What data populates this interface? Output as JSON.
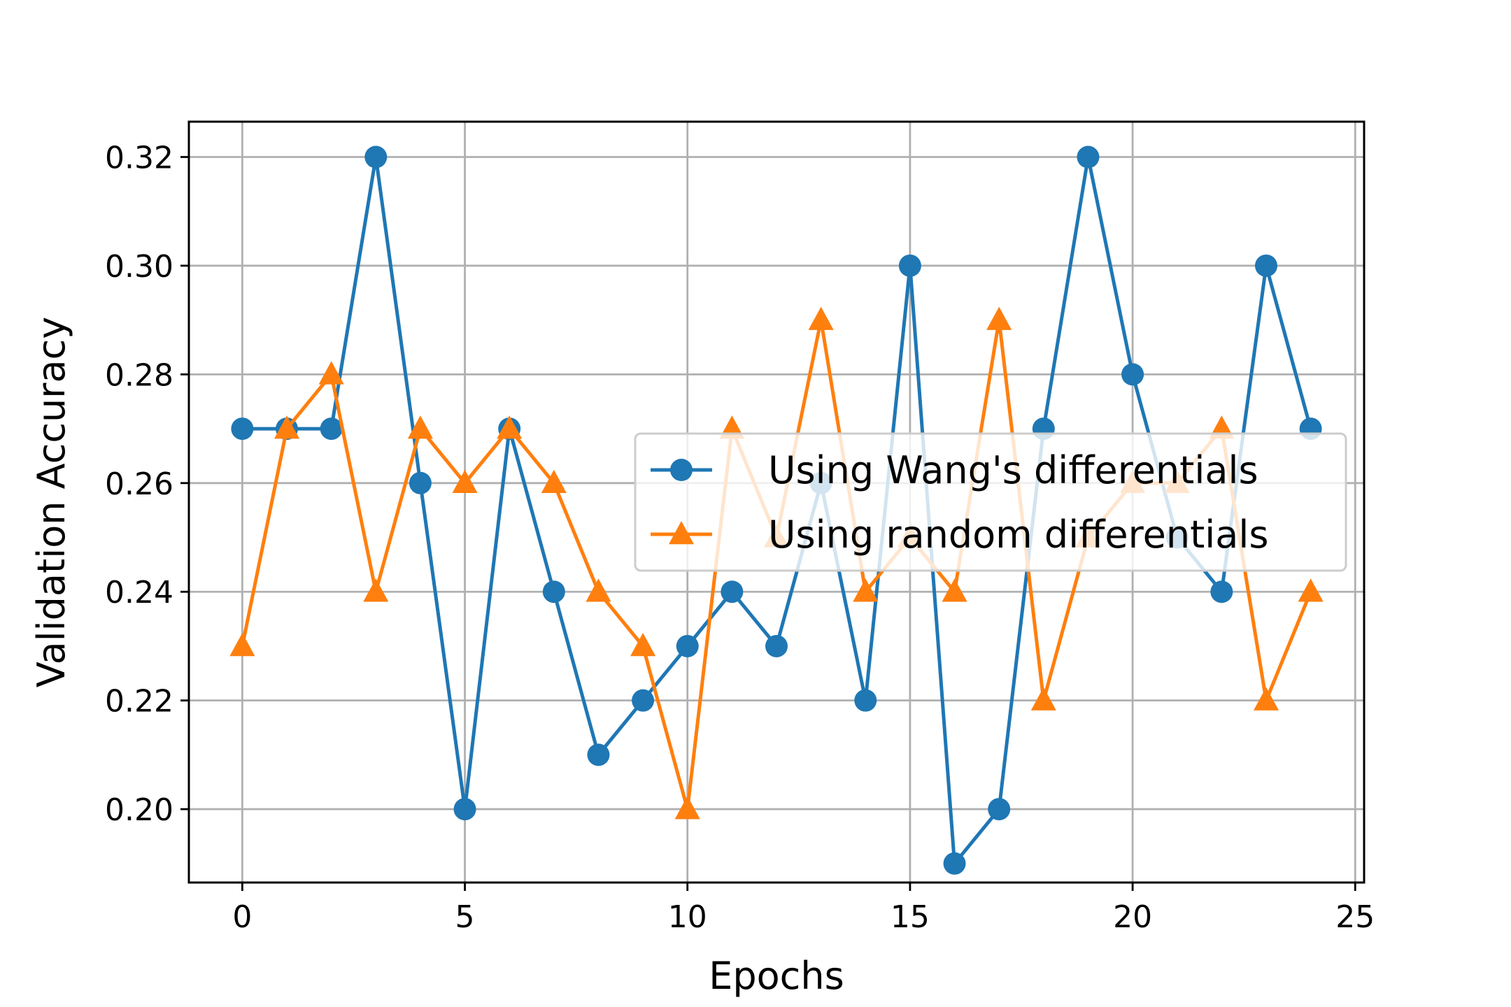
{
  "chart_data": {
    "type": "line",
    "title": "",
    "xlabel": "Epochs",
    "ylabel": "Validation Accuracy",
    "xlim": [
      -1.2,
      25.2
    ],
    "ylim": [
      0.1865,
      0.3265
    ],
    "xticks": [
      0,
      5,
      10,
      15,
      20,
      25
    ],
    "xtick_labels": [
      "0",
      "5",
      "10",
      "15",
      "20",
      "25"
    ],
    "yticks": [
      0.2,
      0.22,
      0.24,
      0.26,
      0.28,
      0.3,
      0.32
    ],
    "ytick_labels": [
      "0.20",
      "0.22",
      "0.24",
      "0.26",
      "0.28",
      "0.30",
      "0.32"
    ],
    "grid": true,
    "legend_position": "center-right",
    "x": [
      0,
      1,
      2,
      3,
      4,
      5,
      6,
      7,
      8,
      9,
      10,
      11,
      12,
      13,
      14,
      15,
      16,
      17,
      18,
      19,
      20,
      21,
      22,
      23,
      24
    ],
    "series": [
      {
        "name": "Using Wang's differentials",
        "color": "#1f77b4",
        "marker": "circle",
        "values": [
          0.27,
          0.27,
          0.27,
          0.32,
          0.26,
          0.2,
          0.27,
          0.24,
          0.21,
          0.22,
          0.23,
          0.24,
          0.23,
          0.26,
          0.22,
          0.3,
          0.19,
          0.2,
          0.27,
          0.32,
          0.28,
          0.25,
          0.24,
          0.3,
          0.27
        ]
      },
      {
        "name": "Using random differentials",
        "color": "#ff7f0e",
        "marker": "triangle",
        "values": [
          0.23,
          0.27,
          0.28,
          0.24,
          0.27,
          0.26,
          0.27,
          0.26,
          0.24,
          0.23,
          0.2,
          0.27,
          0.25,
          0.29,
          0.24,
          0.25,
          0.24,
          0.29,
          0.22,
          0.25,
          0.26,
          0.26,
          0.27,
          0.22,
          0.24
        ]
      }
    ]
  }
}
